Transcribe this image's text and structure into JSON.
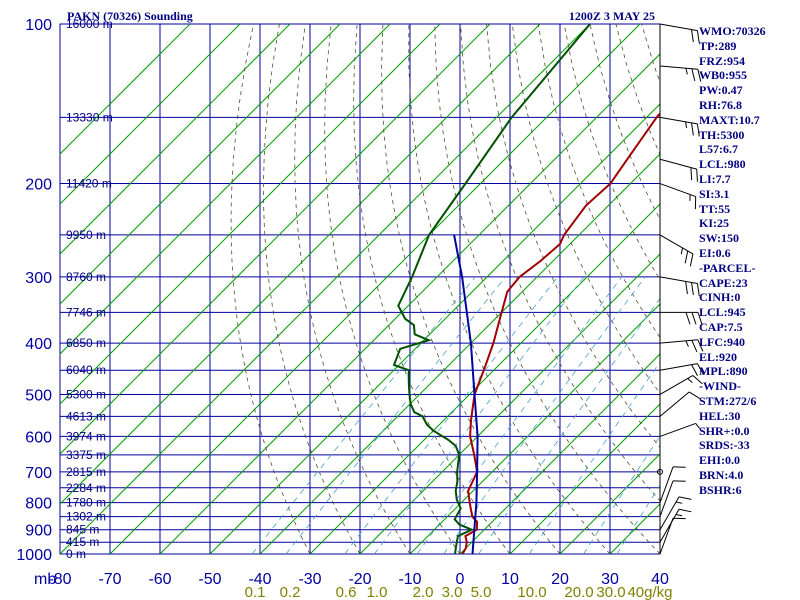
{
  "header": {
    "station": "PAKN (70326) Sounding",
    "time": "1200Z  3 MAY 25"
  },
  "indices": [
    "WMO:70326",
    "TP:289",
    "FRZ:954",
    "WB0:955",
    "PW:0.47",
    "RH:76.8",
    "MAXT:10.7",
    "TH:5300",
    "L57:6.7",
    "LCL:980",
    "LI:7.7",
    "SI:3.1",
    "TT:55",
    "KI:25",
    "SW:150",
    "EI:0.6",
    "-PARCEL-",
    "CAPE:23",
    "CINH:0",
    "LCL:945",
    "CAP:7.5",
    "LFC:940",
    "EL:920",
    "MPL:890",
    "-WIND-",
    "STM:272/6",
    "HEL:30",
    "SHR+:0.0",
    "SRDS:-33",
    "EHI:0.0",
    "BRN:4.0",
    "BSHR:6"
  ],
  "chart_data": {
    "type": "line",
    "title": "PAKN (70326) Sounding",
    "xlabel": "",
    "ylabel": "mb",
    "xlim": [
      -80,
      40
    ],
    "ylim": [
      1000,
      100
    ],
    "y_scale": "log",
    "grid": true,
    "y_ticks": [
      {
        "p": 100,
        "label": "100"
      },
      {
        "p": 200,
        "label": "200"
      },
      {
        "p": 300,
        "label": "300"
      },
      {
        "p": 400,
        "label": "400"
      },
      {
        "p": 500,
        "label": "500"
      },
      {
        "p": 600,
        "label": "600"
      },
      {
        "p": 700,
        "label": "700"
      },
      {
        "p": 800,
        "label": "800"
      },
      {
        "p": 900,
        "label": "900"
      },
      {
        "p": 1000,
        "label": "1000"
      }
    ],
    "x_ticks": [
      {
        "t": -80,
        "label": "-80"
      },
      {
        "t": -70,
        "label": "-70"
      },
      {
        "t": -60,
        "label": "-60"
      },
      {
        "t": -50,
        "label": "-50"
      },
      {
        "t": -40,
        "label": "-40"
      },
      {
        "t": -30,
        "label": "-30"
      },
      {
        "t": -20,
        "label": "-20"
      },
      {
        "t": -10,
        "label": "-10"
      },
      {
        "t": 0,
        "label": "0"
      },
      {
        "t": 10,
        "label": "10"
      },
      {
        "t": 20,
        "label": "20"
      },
      {
        "t": 30,
        "label": "30"
      },
      {
        "t": 40,
        "label": "40"
      }
    ],
    "axis_unit_label": "mb",
    "height_labels": [
      {
        "p": 100,
        "label": "16000 m"
      },
      {
        "p": 150,
        "label": "13330 m"
      },
      {
        "p": 200,
        "label": "11420 m"
      },
      {
        "p": 250,
        "label": "9950 m"
      },
      {
        "p": 300,
        "label": "8760 m"
      },
      {
        "p": 350,
        "label": "7746 m"
      },
      {
        "p": 400,
        "label": "6850 m"
      },
      {
        "p": 450,
        "label": "6040 m"
      },
      {
        "p": 500,
        "label": "5300 m"
      },
      {
        "p": 550,
        "label": "4613 m"
      },
      {
        "p": 600,
        "label": "3974 m"
      },
      {
        "p": 650,
        "label": "3375 m"
      },
      {
        "p": 700,
        "label": "2815 m"
      },
      {
        "p": 750,
        "label": "2284 m"
      },
      {
        "p": 800,
        "label": "1780 m"
      },
      {
        "p": 850,
        "label": "1302 m"
      },
      {
        "p": 900,
        "label": "845 m"
      },
      {
        "p": 950,
        "label": "415 m"
      },
      {
        "p": 1000,
        "label": "0 m"
      }
    ],
    "mixing_ratio_labels": [
      {
        "value": 0.1,
        "label": "0.1"
      },
      {
        "value": 0.2,
        "label": "0.2"
      },
      {
        "value": 0.6,
        "label": "0.6"
      },
      {
        "value": 1.0,
        "label": "1.0"
      },
      {
        "value": 2.0,
        "label": "2.0"
      },
      {
        "value": 3.0,
        "label": "3.0"
      },
      {
        "value": 5.0,
        "label": "5.0"
      },
      {
        "value": 10.0,
        "label": "10.0"
      },
      {
        "value": 20.0,
        "label": "20.0"
      },
      {
        "value": 30.0,
        "label": "30.0"
      }
    ],
    "mixing_ratio_unit": "40g/kg",
    "series": [
      {
        "key": "temperature",
        "color": "#a00000",
        "points": [
          [
            1000,
            0.5
          ],
          [
            975,
            0
          ],
          [
            950,
            -1
          ],
          [
            925,
            -2.5
          ],
          [
            900,
            -1.5
          ],
          [
            870,
            -3
          ],
          [
            850,
            -5
          ],
          [
            820,
            -7
          ],
          [
            790,
            -9
          ],
          [
            760,
            -11
          ],
          [
            700,
            -13
          ],
          [
            650,
            -17
          ],
          [
            600,
            -21.5
          ],
          [
            560,
            -24.5
          ],
          [
            500,
            -29
          ],
          [
            450,
            -32
          ],
          [
            400,
            -35.5
          ],
          [
            350,
            -40
          ],
          [
            320,
            -43
          ],
          [
            300,
            -43.5
          ],
          [
            280,
            -42.5
          ],
          [
            260,
            -42
          ],
          [
            250,
            -43
          ],
          [
            220,
            -44.5
          ],
          [
            200,
            -44
          ],
          [
            180,
            -45.5
          ],
          [
            150,
            -48
          ],
          [
            120,
            -49
          ],
          [
            100,
            -50
          ]
        ]
      },
      {
        "key": "dewpoint",
        "color": "#005000",
        "points": [
          [
            1000,
            -1
          ],
          [
            975,
            -2
          ],
          [
            950,
            -3
          ],
          [
            925,
            -4
          ],
          [
            900,
            -2.5
          ],
          [
            880,
            -6
          ],
          [
            860,
            -8
          ],
          [
            820,
            -9
          ],
          [
            790,
            -11.5
          ],
          [
            760,
            -13.5
          ],
          [
            730,
            -15
          ],
          [
            700,
            -17
          ],
          [
            650,
            -20
          ],
          [
            625,
            -22.5
          ],
          [
            610,
            -25
          ],
          [
            595,
            -28
          ],
          [
            585,
            -30
          ],
          [
            570,
            -32.5
          ],
          [
            550,
            -35
          ],
          [
            540,
            -37.5
          ],
          [
            520,
            -40
          ],
          [
            500,
            -42
          ],
          [
            480,
            -44
          ],
          [
            460,
            -46
          ],
          [
            450,
            -47
          ],
          [
            440,
            -51
          ],
          [
            410,
            -53
          ],
          [
            395,
            -49
          ],
          [
            385,
            -53
          ],
          [
            370,
            -55
          ],
          [
            360,
            -58
          ],
          [
            340,
            -62
          ],
          [
            300,
            -65
          ],
          [
            250,
            -70
          ],
          [
            200,
            -73
          ],
          [
            150,
            -77
          ],
          [
            100,
            -80
          ]
        ]
      },
      {
        "key": "parcel",
        "color": "#0000a0",
        "points": [
          [
            1000,
            2.5
          ],
          [
            900,
            -2
          ],
          [
            800,
            -7
          ],
          [
            700,
            -13
          ],
          [
            600,
            -20
          ],
          [
            500,
            -29
          ],
          [
            400,
            -40
          ],
          [
            300,
            -55
          ],
          [
            250,
            -65
          ]
        ]
      }
    ],
    "wind_barbs": [
      {
        "p": 100,
        "dir": 280,
        "spd": 20
      },
      {
        "p": 120,
        "dir": 275,
        "spd": 25
      },
      {
        "p": 150,
        "dir": 280,
        "spd": 25
      },
      {
        "p": 180,
        "dir": 285,
        "spd": 20
      },
      {
        "p": 200,
        "dir": 290,
        "spd": 15
      },
      {
        "p": 250,
        "dir": 300,
        "spd": 25
      },
      {
        "p": 300,
        "dir": 280,
        "spd": 30
      },
      {
        "p": 350,
        "dir": 270,
        "spd": 30
      },
      {
        "p": 400,
        "dir": 265,
        "spd": 25
      },
      {
        "p": 450,
        "dir": 260,
        "spd": 20
      },
      {
        "p": 500,
        "dir": 240,
        "spd": 15
      },
      {
        "p": 550,
        "dir": 230,
        "spd": 10
      },
      {
        "p": 600,
        "dir": 250,
        "spd": 5
      },
      {
        "p": 700,
        "dir": 0,
        "spd": 0
      },
      {
        "p": 800,
        "dir": 200,
        "spd": 10
      },
      {
        "p": 850,
        "dir": 200,
        "spd": 10
      },
      {
        "p": 900,
        "dir": 210,
        "spd": 15
      },
      {
        "p": 950,
        "dir": 210,
        "spd": 15
      },
      {
        "p": 1000,
        "dir": 200,
        "spd": 10
      }
    ]
  }
}
